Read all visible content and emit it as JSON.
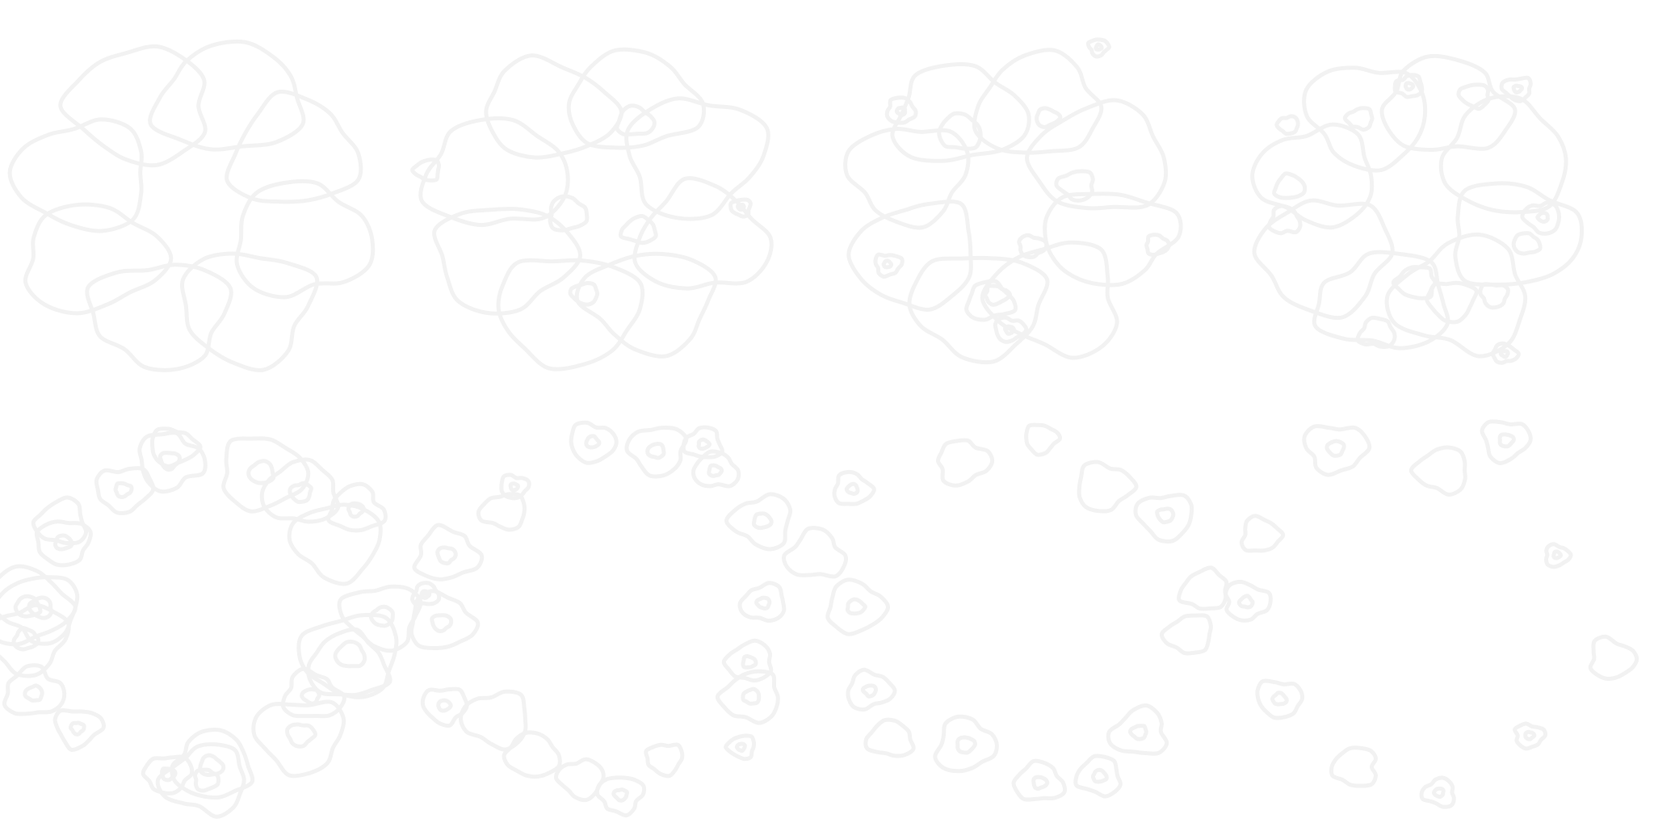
{
  "stroke_color": "#f2f2f2",
  "background_color": "#ffffff",
  "frame_count": 8,
  "frames": [
    {
      "index": 1,
      "state": "intact flower cluster"
    },
    {
      "index": 2,
      "state": "first cracks"
    },
    {
      "index": 3,
      "state": "fragmenting"
    },
    {
      "index": 4,
      "state": "fragmenting further"
    },
    {
      "index": 5,
      "state": "ring of blobs"
    },
    {
      "index": 6,
      "state": "scattered blobs"
    },
    {
      "index": 7,
      "state": "sparse scattered blobs"
    },
    {
      "index": 8,
      "state": "few remaining blobs"
    }
  ]
}
